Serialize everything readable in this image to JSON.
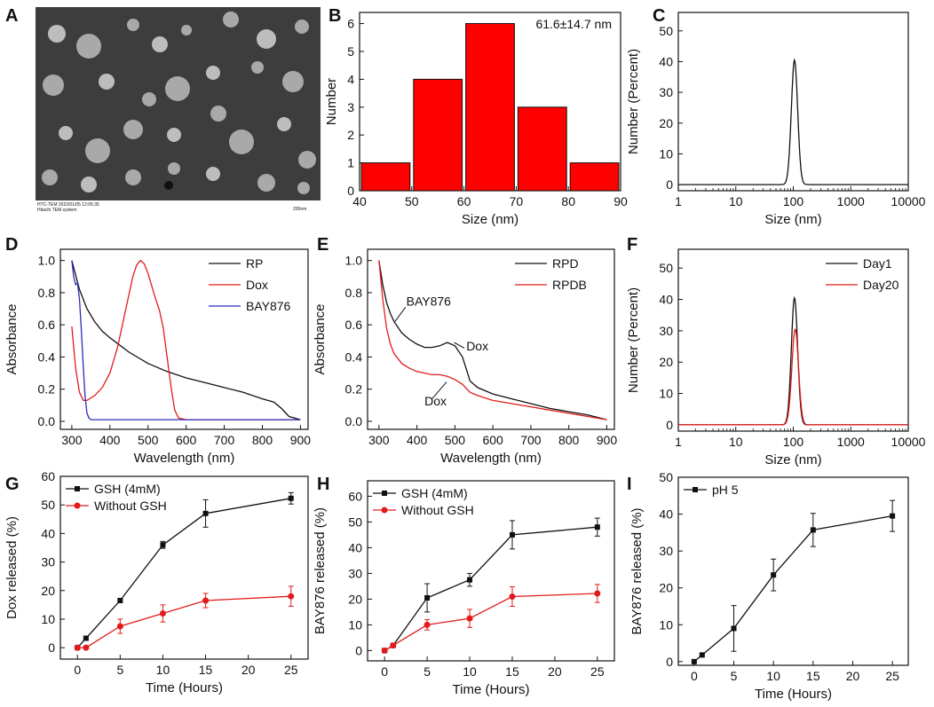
{
  "colors": {
    "black": "#111111",
    "red": "#e11b1b",
    "blue": "#2b2bbd",
    "barRed": "#ff0000"
  },
  "panels": {
    "A": {
      "label": "A",
      "caption_line1": "HTC-TEM 2022/01/05 12:05:35",
      "caption_line2": "Hitachi TEM system",
      "scale": "200nm"
    },
    "B": {
      "label": "B"
    },
    "C": {
      "label": "C"
    },
    "D": {
      "label": "D"
    },
    "E": {
      "label": "E"
    },
    "F": {
      "label": "F"
    },
    "G": {
      "label": "G"
    },
    "H": {
      "label": "H"
    },
    "I": {
      "label": "I"
    }
  },
  "chart_data": [
    {
      "id": "B",
      "type": "bar",
      "title": "",
      "xlabel": "Size (nm)",
      "ylabel": "Number",
      "bins": [
        [
          40,
          50
        ],
        [
          50,
          60
        ],
        [
          60,
          70
        ],
        [
          70,
          80
        ],
        [
          80,
          90
        ]
      ],
      "values": [
        1,
        4,
        6,
        3,
        1
      ],
      "xlim": [
        40,
        90
      ],
      "ylim": [
        0,
        6.4
      ],
      "xticks": [
        "40",
        "50",
        "60",
        "70",
        "80",
        "90"
      ],
      "yticks": [
        "0",
        "1",
        "2",
        "3",
        "4",
        "5",
        "6"
      ],
      "annotation": "61.6±14.7 nm"
    },
    {
      "id": "C",
      "type": "line",
      "xscale": "log",
      "xlabel": "Size (nm)",
      "ylabel": "Number (Percent)",
      "xlim": [
        1,
        10000
      ],
      "ylim": [
        -2,
        56
      ],
      "xticks": [
        "1",
        "10",
        "100",
        "1000",
        "10000"
      ],
      "yticks": [
        "0",
        "10",
        "20",
        "30",
        "40",
        "50"
      ],
      "series": [
        {
          "name": "",
          "peak_x": 105,
          "peak_y": 40.5,
          "width": 0.055
        }
      ]
    },
    {
      "id": "D",
      "type": "line",
      "xlabel": "Wavelength (nm)",
      "ylabel": "Absorbance",
      "xlim": [
        270,
        920
      ],
      "ylim": [
        -0.05,
        1.07
      ],
      "xticks": [
        "300",
        "400",
        "500",
        "600",
        "700",
        "800",
        "900"
      ],
      "yticks": [
        "0.0",
        "0.2",
        "0.4",
        "0.6",
        "0.8",
        "1.0"
      ],
      "legend_position": "top-right",
      "series": [
        {
          "name": "RP",
          "x": [
            300,
            320,
            340,
            360,
            380,
            400,
            450,
            500,
            550,
            600,
            650,
            700,
            750,
            800,
            830,
            850,
            870,
            900
          ],
          "y": [
            1.0,
            0.82,
            0.7,
            0.62,
            0.56,
            0.52,
            0.43,
            0.36,
            0.31,
            0.27,
            0.24,
            0.21,
            0.18,
            0.14,
            0.12,
            0.08,
            0.03,
            0.01
          ]
        },
        {
          "name": "Dox",
          "x": [
            300,
            310,
            320,
            330,
            340,
            360,
            380,
            400,
            420,
            440,
            460,
            470,
            480,
            490,
            500,
            510,
            520,
            530,
            540,
            550,
            560,
            570,
            580,
            600,
            650,
            700,
            800,
            900
          ],
          "y": [
            0.59,
            0.33,
            0.18,
            0.13,
            0.13,
            0.16,
            0.21,
            0.3,
            0.46,
            0.68,
            0.9,
            0.97,
            1.0,
            0.98,
            0.92,
            0.84,
            0.76,
            0.69,
            0.58,
            0.4,
            0.22,
            0.07,
            0.02,
            0.01,
            0.01,
            0.01,
            0.01,
            0.01
          ]
        },
        {
          "name": "BAY876",
          "x": [
            300,
            305,
            310,
            315,
            320,
            325,
            330,
            335,
            340,
            345,
            350,
            360,
            380,
            400,
            500,
            600,
            700,
            800,
            900
          ],
          "y": [
            1.0,
            0.9,
            0.85,
            0.86,
            0.76,
            0.57,
            0.34,
            0.15,
            0.05,
            0.02,
            0.01,
            0.01,
            0.01,
            0.01,
            0.01,
            0.01,
            0.01,
            0.01,
            0.01
          ]
        }
      ]
    },
    {
      "id": "E",
      "type": "line",
      "xlabel": "Wavelength (nm)",
      "ylabel": "Absorbance",
      "xlim": [
        270,
        920
      ],
      "ylim": [
        -0.05,
        1.07
      ],
      "xticks": [
        "300",
        "400",
        "500",
        "600",
        "700",
        "800",
        "900"
      ],
      "yticks": [
        "0.0",
        "0.2",
        "0.4",
        "0.6",
        "0.8",
        "1.0"
      ],
      "legend_position": "top-right",
      "annotations": [
        "BAY876",
        "Dox",
        "Dox"
      ],
      "series": [
        {
          "name": "RPD",
          "x": [
            300,
            310,
            320,
            330,
            340,
            360,
            380,
            400,
            420,
            440,
            460,
            480,
            500,
            520,
            540,
            560,
            600,
            650,
            700,
            750,
            800,
            850,
            900
          ],
          "y": [
            1.0,
            0.85,
            0.74,
            0.67,
            0.62,
            0.55,
            0.51,
            0.48,
            0.46,
            0.46,
            0.47,
            0.49,
            0.47,
            0.4,
            0.25,
            0.21,
            0.17,
            0.14,
            0.11,
            0.08,
            0.06,
            0.04,
            0.01
          ]
        },
        {
          "name": "RPDB",
          "x": [
            300,
            310,
            320,
            330,
            340,
            360,
            380,
            400,
            420,
            440,
            460,
            480,
            500,
            520,
            540,
            560,
            600,
            650,
            700,
            750,
            800,
            850,
            900
          ],
          "y": [
            1.0,
            0.76,
            0.58,
            0.48,
            0.42,
            0.36,
            0.33,
            0.31,
            0.3,
            0.29,
            0.29,
            0.28,
            0.26,
            0.23,
            0.18,
            0.16,
            0.13,
            0.11,
            0.09,
            0.07,
            0.05,
            0.03,
            0.01
          ]
        }
      ]
    },
    {
      "id": "F",
      "type": "line",
      "xscale": "log",
      "xlabel": "Size (nm)",
      "ylabel": "Number (Percent)",
      "xlim": [
        1,
        10000
      ],
      "ylim": [
        -2,
        56
      ],
      "xticks": [
        "1",
        "10",
        "100",
        "1000",
        "10000"
      ],
      "yticks": [
        "0",
        "10",
        "20",
        "30",
        "40",
        "50"
      ],
      "legend_position": "top-right",
      "series": [
        {
          "name": "Day1",
          "peak_x": 105,
          "peak_y": 40.5,
          "width": 0.055
        },
        {
          "name": "Day20",
          "peak_x": 108,
          "peak_y": 30.5,
          "width": 0.058
        }
      ]
    },
    {
      "id": "G",
      "type": "line",
      "xlabel": "Time (Hours)",
      "ylabel": "Dox released (%)",
      "xlim": [
        -2,
        27
      ],
      "ylim": [
        -4,
        60
      ],
      "xticks": [
        "0",
        "5",
        "10",
        "15",
        "20",
        "25"
      ],
      "yticks": [
        "0",
        "10",
        "20",
        "30",
        "40",
        "50",
        "60"
      ],
      "legend_position": "top-left",
      "series": [
        {
          "name": "GSH (4mM)",
          "x": [
            0,
            1,
            5,
            10,
            15,
            25
          ],
          "y": [
            0,
            3.3,
            16.5,
            36,
            47,
            52.3
          ],
          "err": [
            0,
            0.6,
            0.6,
            1.2,
            4.8,
            2
          ]
        },
        {
          "name": "Without GSH",
          "x": [
            0,
            1,
            5,
            10,
            15,
            25
          ],
          "y": [
            0,
            0,
            7.5,
            12,
            16.5,
            18
          ],
          "err": [
            0,
            0,
            2.5,
            3,
            2.5,
            3.5
          ]
        }
      ]
    },
    {
      "id": "H",
      "type": "line",
      "xlabel": "Time (Hours)",
      "ylabel": "BAY876 released (%)",
      "xlim": [
        -2,
        27
      ],
      "ylim": [
        -4,
        66
      ],
      "xticks": [
        "0",
        "5",
        "10",
        "15",
        "20",
        "25"
      ],
      "yticks": [
        "0",
        "10",
        "20",
        "30",
        "40",
        "50",
        "60"
      ],
      "legend_position": "top-left",
      "series": [
        {
          "name": "GSH (4mM)",
          "x": [
            0,
            1,
            5,
            10,
            15,
            25
          ],
          "y": [
            0,
            2,
            20.5,
            27.5,
            45,
            48
          ],
          "err": [
            0,
            0.6,
            5.5,
            2.5,
            5.5,
            3.5
          ]
        },
        {
          "name": "Without GSH",
          "x": [
            0,
            1,
            5,
            10,
            15,
            25
          ],
          "y": [
            0,
            2,
            10,
            12.5,
            21,
            22.2
          ],
          "err": [
            0,
            0.6,
            2,
            3.5,
            3.8,
            3.5
          ]
        }
      ]
    },
    {
      "id": "I",
      "type": "line",
      "xlabel": "Time (Hours)",
      "ylabel": "BAY876 released (%)",
      "xlim": [
        -2,
        27
      ],
      "ylim": [
        -1,
        50
      ],
      "xticks": [
        "0",
        "5",
        "10",
        "15",
        "20",
        "25"
      ],
      "yticks": [
        "0",
        "10",
        "20",
        "30",
        "40",
        "50"
      ],
      "legend_position": "top-left",
      "series": [
        {
          "name": "pH 5",
          "x": [
            0,
            1,
            5,
            10,
            15,
            25
          ],
          "y": [
            0,
            1.8,
            9,
            23.5,
            35.7,
            39.5
          ],
          "err": [
            0,
            0.4,
            6.2,
            4.3,
            4.5,
            4.2
          ]
        }
      ]
    }
  ]
}
